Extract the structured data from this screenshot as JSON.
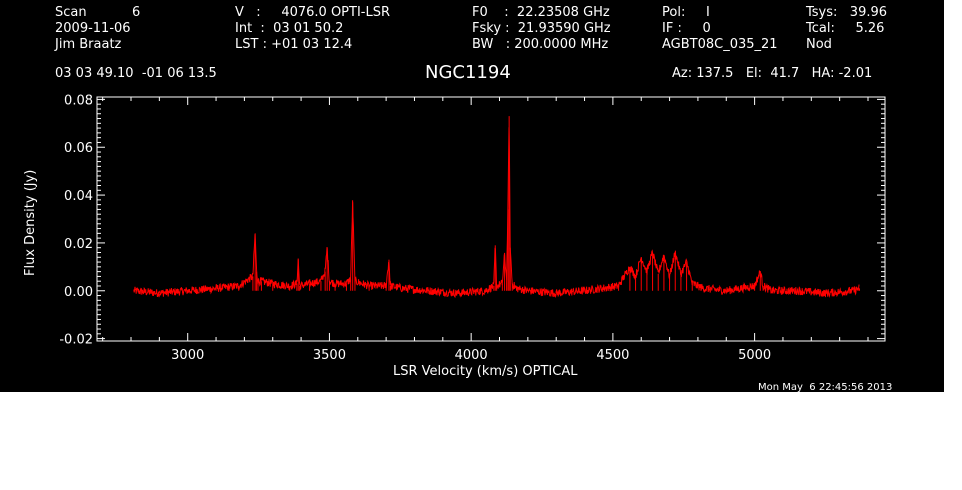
{
  "header": {
    "scan_line": "Scan           6",
    "date": "2009-11-06",
    "observer": "Jim Braatz",
    "velocity_line": "V   :     4076.0 OPTI-LSR",
    "int_line": "Int  :  03 01 50.2",
    "lst_line": "LST : +01 03 12.4",
    "f0_line": "F0    :  22.23508 GHz",
    "fsky_line": "Fsky :  21.93590 GHz",
    "bw_line": "BW   : 200.0000 MHz",
    "pol_line": "Pol:     I",
    "if_line": "IF :     0",
    "project": "AGBT08C_035_21",
    "tsys_line": "Tsys:   39.96",
    "tcal_line": "Tcal:     5.26",
    "mode": "Nod",
    "coords": "03 03 49.10  -01 06 13.5",
    "source": "NGC1194",
    "az_el_ha": "Az: 137.5   El:  41.7   HA: -2.01",
    "timestamp": "Mon May  6 22:45:56 2013"
  },
  "colors": {
    "background": "#000000",
    "axes": "#ffffff",
    "spectrum": "#ff0000"
  },
  "chart_data": {
    "type": "line",
    "title": "NGC1194",
    "xlabel": "LSR Velocity (km/s) OPTICAL",
    "ylabel": "Flux Density (Jy)",
    "xlim": [
      2680,
      5460
    ],
    "ylim": [
      -0.021,
      0.081
    ],
    "xticks": [
      3000,
      3500,
      4000,
      4500,
      5000
    ],
    "xtick_labels": [
      "3000",
      "3500",
      "4000",
      "4500",
      "5000"
    ],
    "yticks": [
      -0.02,
      0.0,
      0.02,
      0.04,
      0.06,
      0.08
    ],
    "ytick_labels": [
      "-0.02",
      "0.00",
      "0.02",
      "0.04",
      "0.06",
      "0.08"
    ],
    "grid": false,
    "series": [
      {
        "x": [
          2810,
          2900,
          3000,
          3100,
          3180,
          3230,
          3238,
          3243,
          3248,
          3260,
          3300,
          3360,
          3385,
          3390,
          3395,
          3430,
          3470,
          3485,
          3492,
          3500,
          3520,
          3560,
          3575,
          3582,
          3590,
          3640,
          3700,
          3710,
          3715,
          3760,
          3850,
          3950,
          4050,
          4080,
          4085,
          4090,
          4110,
          4118,
          4125,
          4130,
          4134,
          4138,
          4145,
          4160,
          4200,
          4300,
          4400,
          4520,
          4560,
          4580,
          4600,
          4620,
          4640,
          4660,
          4680,
          4700,
          4720,
          4740,
          4760,
          4780,
          4820,
          4900,
          5000,
          5020,
          5030,
          5060,
          5150,
          5250,
          5350,
          5370
        ],
        "y": [
          0.0,
          -0.001,
          0.0,
          0.001,
          0.002,
          0.006,
          0.024,
          0.008,
          0.004,
          0.004,
          0.003,
          0.002,
          0.003,
          0.013,
          0.002,
          0.003,
          0.004,
          0.008,
          0.018,
          0.004,
          0.003,
          0.003,
          0.005,
          0.037,
          0.004,
          0.002,
          0.002,
          0.013,
          0.002,
          0.001,
          0.0,
          -0.001,
          0.0,
          0.002,
          0.019,
          0.002,
          0.003,
          0.015,
          0.005,
          0.034,
          0.073,
          0.018,
          0.003,
          0.001,
          0.0,
          -0.001,
          0.0,
          0.002,
          0.01,
          0.006,
          0.014,
          0.008,
          0.016,
          0.007,
          0.015,
          0.006,
          0.016,
          0.007,
          0.012,
          0.003,
          0.001,
          0.0,
          0.002,
          0.008,
          0.002,
          0.0,
          0.0,
          -0.001,
          0.0,
          0.001
        ]
      }
    ]
  }
}
